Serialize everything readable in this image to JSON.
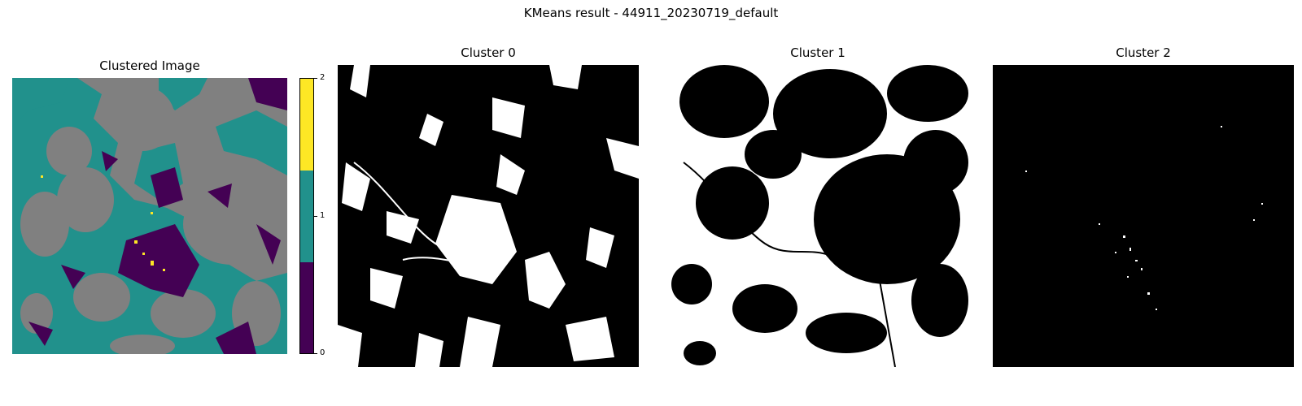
{
  "suptitle": "KMeans result - 44911_20230719_default",
  "chart_data": {
    "type": "heatmap",
    "title": "KMeans result - 44911_20230719_default",
    "panels": [
      {
        "title": "Clustered Image",
        "kind": "label-map"
      },
      {
        "title": "Cluster 0",
        "kind": "binary-mask"
      },
      {
        "title": "Cluster 1",
        "kind": "binary-mask"
      },
      {
        "title": "Cluster 2",
        "kind": "binary-mask"
      }
    ],
    "colorbar": {
      "ticks": [
        "0",
        "1",
        "2"
      ],
      "range": [
        0,
        2
      ],
      "colors": [
        "#440154",
        "#21918c",
        "#fde725"
      ]
    },
    "cluster_colors": {
      "0": "#440154",
      "1": "#21918c",
      "2": "#fde725"
    },
    "background_color": "#808080",
    "mask_on_color": "#ffffff",
    "mask_off_color": "#000000",
    "legend": "right of clustered image"
  }
}
